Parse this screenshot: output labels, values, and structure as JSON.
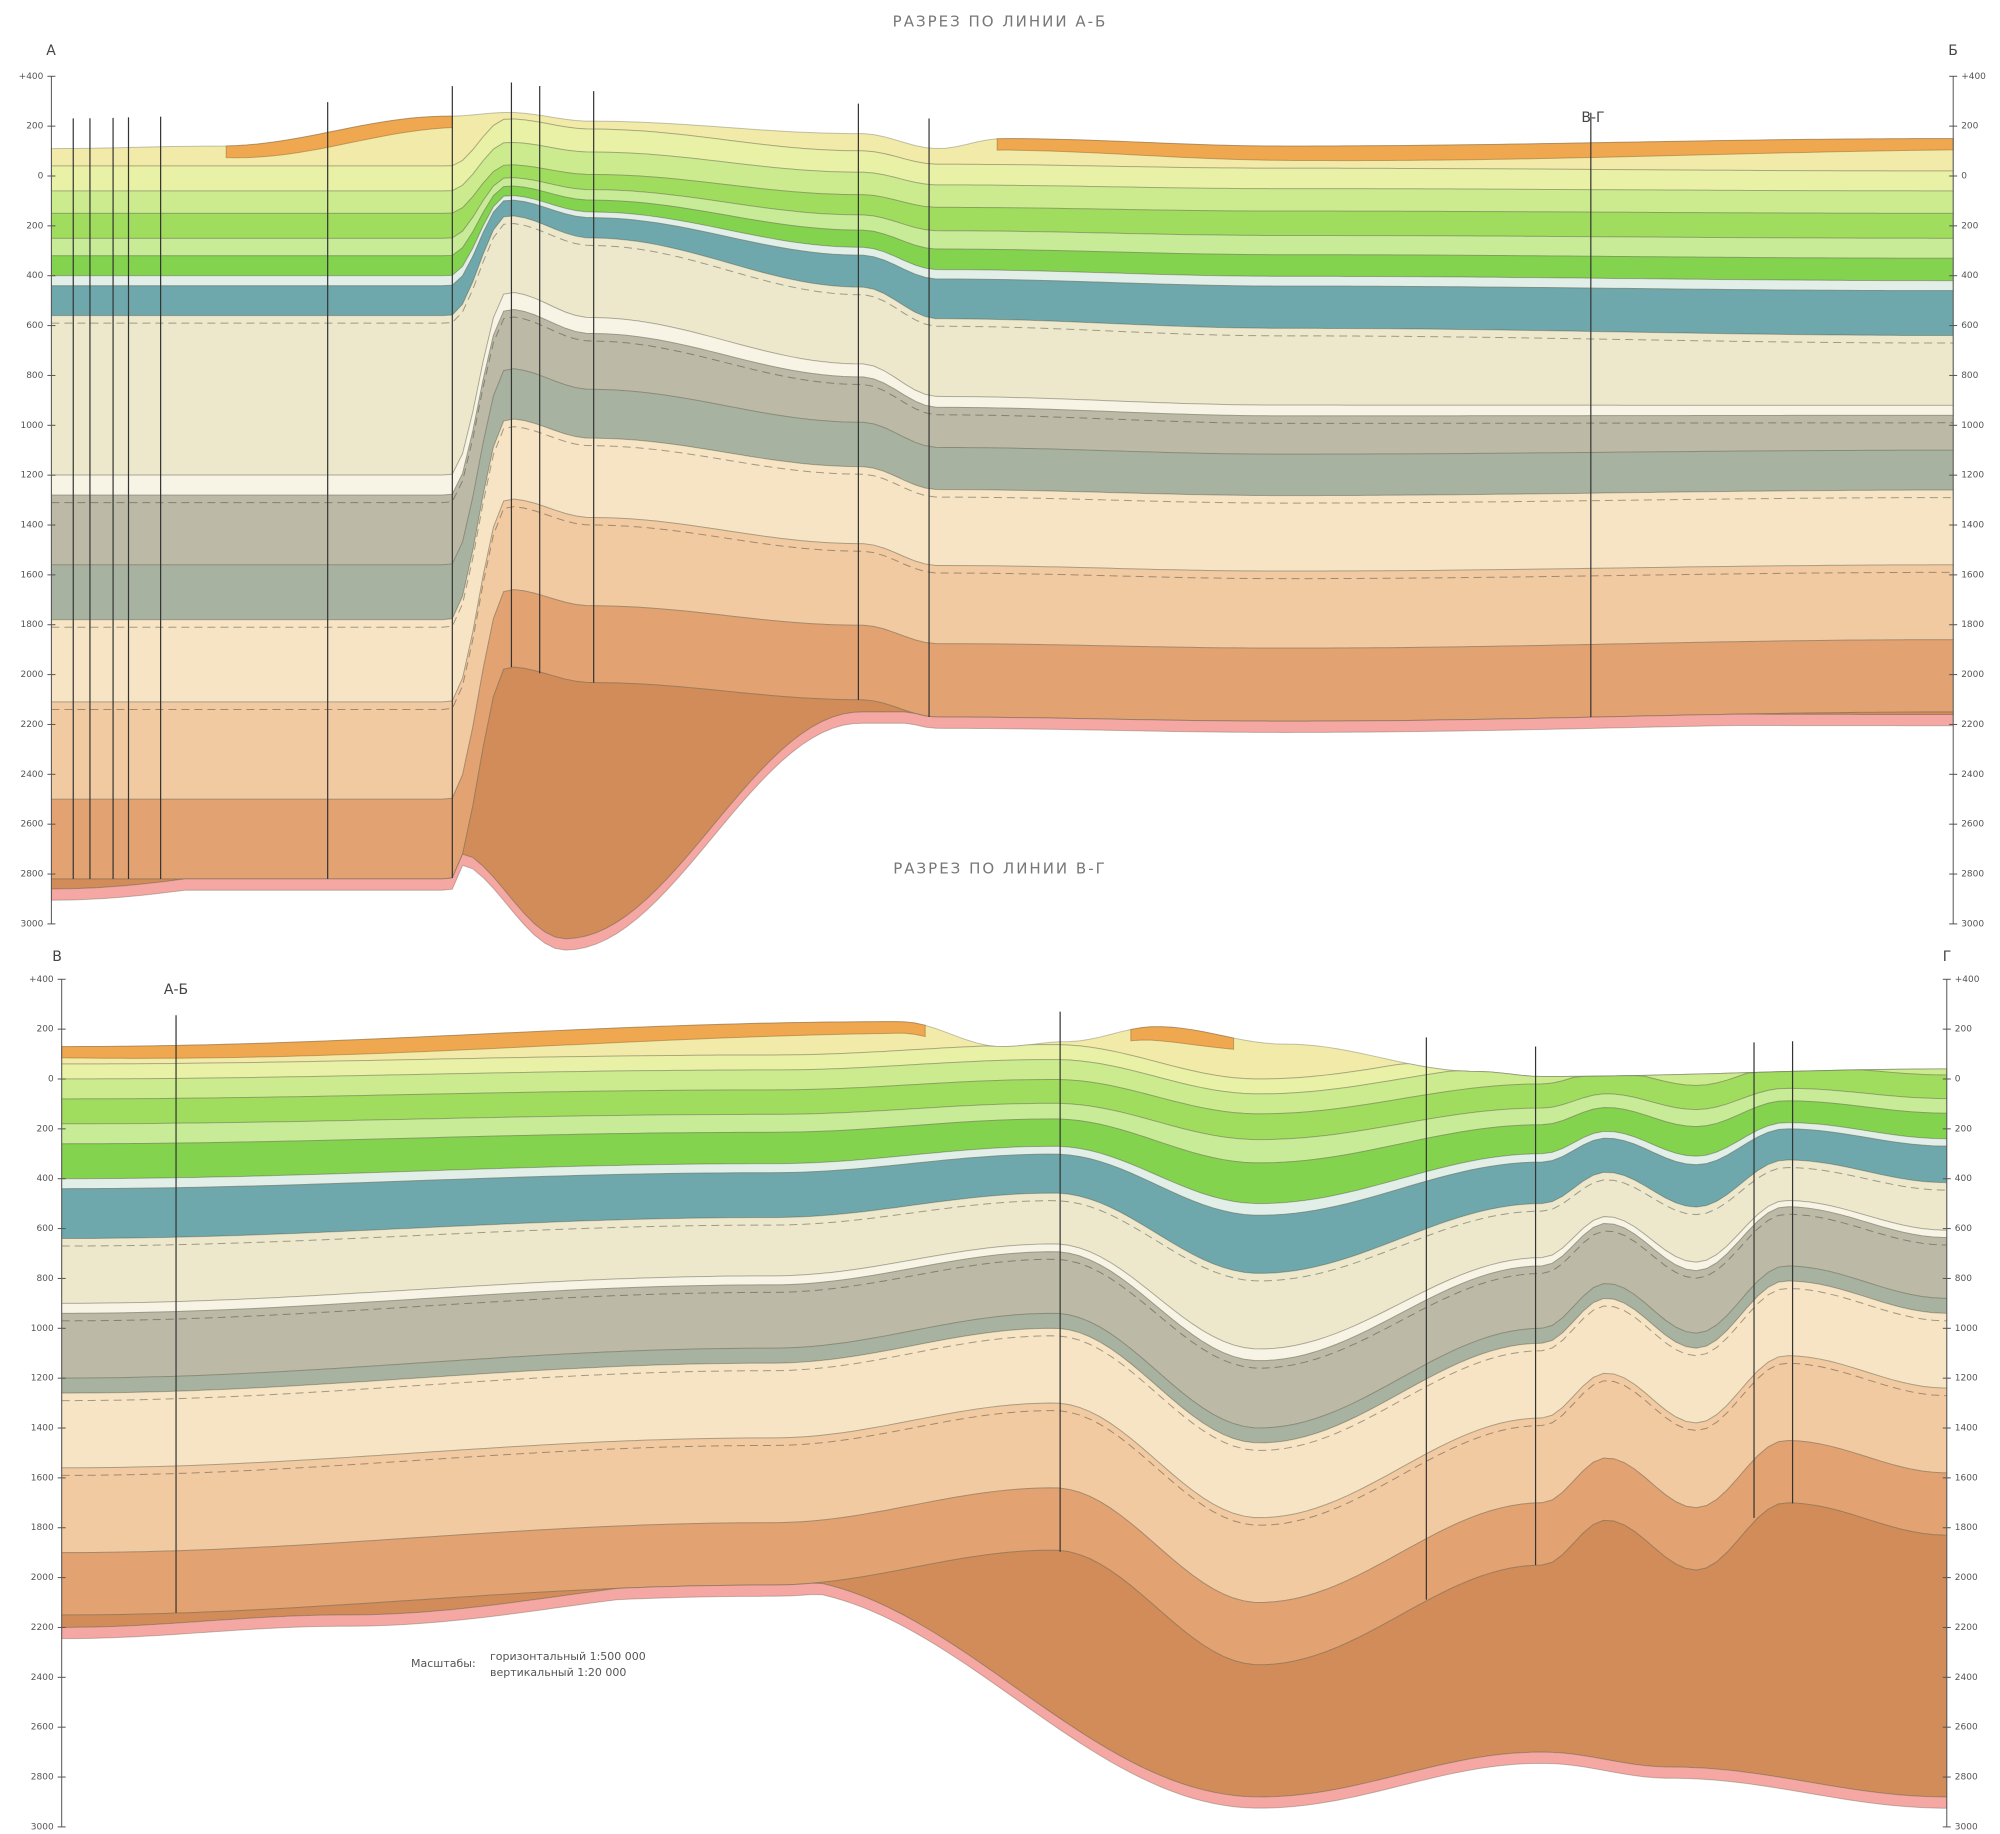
{
  "sections": [
    {
      "title": "РАЗРЕЗ ПО ЛИНИИ А-Б",
      "start": "А",
      "end": "Б",
      "intersection": "В-Г",
      "depth_labels": [
        "+400",
        "200",
        "0",
        "200",
        "400",
        "600",
        "800",
        "1000",
        "1200",
        "1400",
        "1600",
        "1800",
        "2000",
        "2200",
        "2400",
        "2600",
        "2800",
        "3000"
      ]
    },
    {
      "title": "РАЗРЕЗ ПО ЛИНИИ В-Г",
      "start": "В",
      "end": "Г",
      "intersection": "А-Б",
      "depth_labels": [
        "+400",
        "200",
        "0",
        "200",
        "400",
        "600",
        "800",
        "1000",
        "1200",
        "1400",
        "1600",
        "1800",
        "2000",
        "2200",
        "2400",
        "2600",
        "2800",
        "3000"
      ]
    }
  ],
  "scale": {
    "label": "Масштабы:",
    "horizontal": "горизонтальный 1:500 000",
    "vertical": "вертикальный 1:20 000"
  }
}
